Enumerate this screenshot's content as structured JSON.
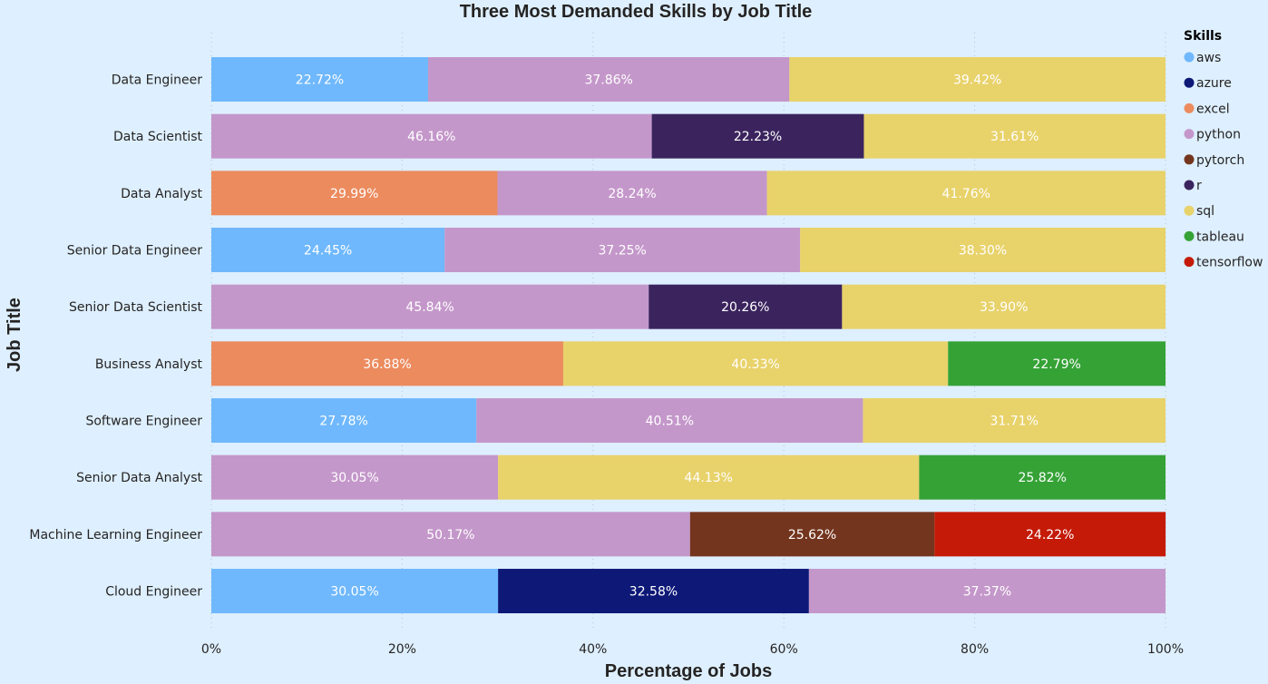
{
  "chart_data": {
    "type": "bar",
    "orientation": "horizontal",
    "stacked": "100%",
    "title": "Three Most Demanded Skills by Job Title",
    "xlabel": "Percentage of Jobs",
    "ylabel": "Job Title",
    "xlim": [
      0,
      100
    ],
    "x_ticks": [
      "0%",
      "20%",
      "40%",
      "60%",
      "80%",
      "100%"
    ],
    "x_tick_values": [
      0,
      20,
      40,
      60,
      80,
      100
    ],
    "grid": true,
    "legend": {
      "title": "Skills",
      "placement": "right",
      "items": [
        {
          "name": "aws",
          "color": "#6fb8fd"
        },
        {
          "name": "azure",
          "color": "#0d1877"
        },
        {
          "name": "excel",
          "color": "#ec8b5e"
        },
        {
          "name": "python",
          "color": "#c497ca"
        },
        {
          "name": "pytorch",
          "color": "#74351e"
        },
        {
          "name": "r",
          "color": "#3b245e"
        },
        {
          "name": "sql",
          "color": "#e8d26a"
        },
        {
          "name": "tableau",
          "color": "#35a236"
        },
        {
          "name": "tensorflow",
          "color": "#c41a07"
        }
      ]
    },
    "categories": [
      "Data Engineer",
      "Data Scientist",
      "Data Analyst",
      "Senior Data Engineer",
      "Senior Data Scientist",
      "Business Analyst",
      "Software Engineer",
      "Senior Data Analyst",
      "Machine Learning Engineer",
      "Cloud Engineer"
    ],
    "rows": [
      {
        "category": "Data Engineer",
        "segments": [
          {
            "skill": "aws",
            "value": 22.72,
            "label": "22.72%"
          },
          {
            "skill": "python",
            "value": 37.86,
            "label": "37.86%"
          },
          {
            "skill": "sql",
            "value": 39.42,
            "label": "39.42%"
          }
        ]
      },
      {
        "category": "Data Scientist",
        "segments": [
          {
            "skill": "python",
            "value": 46.16,
            "label": "46.16%"
          },
          {
            "skill": "r",
            "value": 22.23,
            "label": "22.23%"
          },
          {
            "skill": "sql",
            "value": 31.61,
            "label": "31.61%"
          }
        ]
      },
      {
        "category": "Data Analyst",
        "segments": [
          {
            "skill": "excel",
            "value": 29.99,
            "label": "29.99%"
          },
          {
            "skill": "python",
            "value": 28.24,
            "label": "28.24%"
          },
          {
            "skill": "sql",
            "value": 41.76,
            "label": "41.76%"
          }
        ]
      },
      {
        "category": "Senior Data Engineer",
        "segments": [
          {
            "skill": "aws",
            "value": 24.45,
            "label": "24.45%"
          },
          {
            "skill": "python",
            "value": 37.25,
            "label": "37.25%"
          },
          {
            "skill": "sql",
            "value": 38.3,
            "label": "38.30%"
          }
        ]
      },
      {
        "category": "Senior Data Scientist",
        "segments": [
          {
            "skill": "python",
            "value": 45.84,
            "label": "45.84%"
          },
          {
            "skill": "r",
            "value": 20.26,
            "label": "20.26%"
          },
          {
            "skill": "sql",
            "value": 33.9,
            "label": "33.90%"
          }
        ]
      },
      {
        "category": "Business Analyst",
        "segments": [
          {
            "skill": "excel",
            "value": 36.88,
            "label": "36.88%"
          },
          {
            "skill": "sql",
            "value": 40.33,
            "label": "40.33%"
          },
          {
            "skill": "tableau",
            "value": 22.79,
            "label": "22.79%"
          }
        ]
      },
      {
        "category": "Software Engineer",
        "segments": [
          {
            "skill": "aws",
            "value": 27.78,
            "label": "27.78%"
          },
          {
            "skill": "python",
            "value": 40.51,
            "label": "40.51%"
          },
          {
            "skill": "sql",
            "value": 31.71,
            "label": "31.71%"
          }
        ]
      },
      {
        "category": "Senior Data Analyst",
        "segments": [
          {
            "skill": "python",
            "value": 30.05,
            "label": "30.05%"
          },
          {
            "skill": "sql",
            "value": 44.13,
            "label": "44.13%"
          },
          {
            "skill": "tableau",
            "value": 25.82,
            "label": "25.82%"
          }
        ]
      },
      {
        "category": "Machine Learning Engineer",
        "segments": [
          {
            "skill": "python",
            "value": 50.17,
            "label": "50.17%"
          },
          {
            "skill": "pytorch",
            "value": 25.62,
            "label": "25.62%"
          },
          {
            "skill": "tensorflow",
            "value": 24.22,
            "label": "24.22%"
          }
        ]
      },
      {
        "category": "Cloud Engineer",
        "segments": [
          {
            "skill": "aws",
            "value": 30.05,
            "label": "30.05%"
          },
          {
            "skill": "azure",
            "value": 32.58,
            "label": "32.58%"
          },
          {
            "skill": "python",
            "value": 37.37,
            "label": "37.37%"
          }
        ]
      }
    ]
  }
}
